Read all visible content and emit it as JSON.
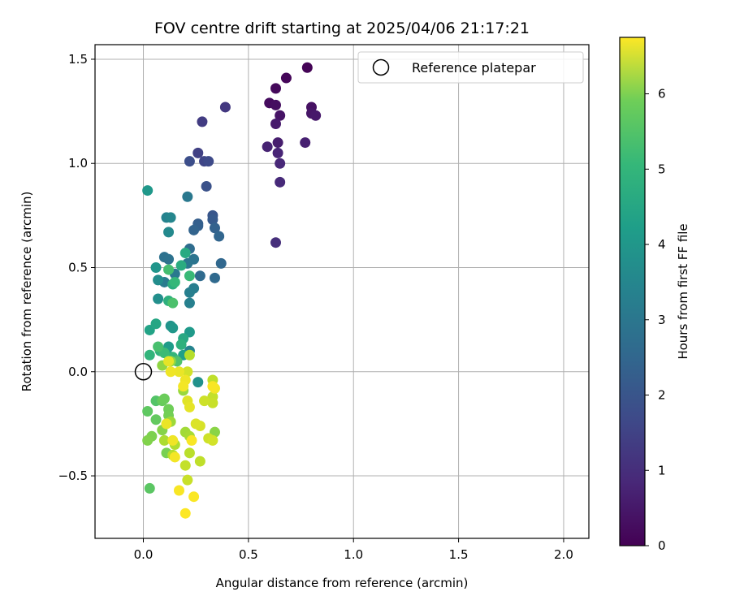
{
  "chart_data": {
    "type": "scatter",
    "title": "FOV centre drift starting at 2025/04/06 21:17:21",
    "xlabel": "Angular distance from reference (arcmin)",
    "ylabel": "Rotation from reference (arcmin)",
    "xlim": [
      -0.23,
      2.12
    ],
    "ylim": [
      -0.8,
      1.57
    ],
    "xticks": [
      0.0,
      0.5,
      1.0,
      1.5,
      2.0
    ],
    "xtick_labels": [
      "0.0",
      "0.5",
      "1.0",
      "1.5",
      "2.0"
    ],
    "yticks": [
      -0.5,
      0.0,
      0.5,
      1.0,
      1.5
    ],
    "ytick_labels": [
      "−0.5",
      "0.0",
      "0.5",
      "1.0",
      "1.5"
    ],
    "grid": true,
    "legend": {
      "placement": "top-right",
      "entries": [
        "Reference platepar"
      ]
    },
    "reference_point": {
      "x": 0.0,
      "y": 0.0,
      "label": "Reference platepar"
    },
    "colorbar": {
      "label": "Hours from first FF file",
      "colormap": "viridis",
      "range": [
        0,
        6.75
      ],
      "ticks": [
        0,
        1,
        2,
        3,
        4,
        5,
        6
      ],
      "tick_labels": [
        "0",
        "1",
        "2",
        "3",
        "4",
        "5",
        "6"
      ]
    },
    "points": [
      {
        "x": 0.78,
        "y": 1.46,
        "c": 0.05
      },
      {
        "x": 0.68,
        "y": 1.41,
        "c": 0.1
      },
      {
        "x": 0.63,
        "y": 1.36,
        "c": 0.15
      },
      {
        "x": 0.6,
        "y": 1.29,
        "c": 0.2
      },
      {
        "x": 0.63,
        "y": 1.28,
        "c": 0.25
      },
      {
        "x": 0.8,
        "y": 1.27,
        "c": 0.3
      },
      {
        "x": 0.65,
        "y": 1.23,
        "c": 0.35
      },
      {
        "x": 0.8,
        "y": 1.24,
        "c": 0.4
      },
      {
        "x": 0.82,
        "y": 1.23,
        "c": 0.45
      },
      {
        "x": 0.63,
        "y": 1.19,
        "c": 0.5
      },
      {
        "x": 0.64,
        "y": 1.1,
        "c": 0.55
      },
      {
        "x": 0.77,
        "y": 1.1,
        "c": 0.6
      },
      {
        "x": 0.59,
        "y": 1.08,
        "c": 0.65
      },
      {
        "x": 0.64,
        "y": 1.05,
        "c": 0.7
      },
      {
        "x": 0.65,
        "y": 1.0,
        "c": 0.75
      },
      {
        "x": 0.65,
        "y": 0.91,
        "c": 0.8
      },
      {
        "x": 0.63,
        "y": 0.62,
        "c": 0.9
      },
      {
        "x": 0.39,
        "y": 1.27,
        "c": 1.1
      },
      {
        "x": 0.28,
        "y": 1.2,
        "c": 1.2
      },
      {
        "x": 0.26,
        "y": 1.05,
        "c": 1.3
      },
      {
        "x": 0.29,
        "y": 1.01,
        "c": 1.4
      },
      {
        "x": 0.31,
        "y": 1.01,
        "c": 1.5
      },
      {
        "x": 0.22,
        "y": 1.01,
        "c": 1.6
      },
      {
        "x": 0.3,
        "y": 0.89,
        "c": 1.7
      },
      {
        "x": 0.33,
        "y": 0.75,
        "c": 1.8
      },
      {
        "x": 0.33,
        "y": 0.73,
        "c": 1.9
      },
      {
        "x": 0.26,
        "y": 0.71,
        "c": 2.0
      },
      {
        "x": 0.26,
        "y": 0.7,
        "c": 2.05
      },
      {
        "x": 0.34,
        "y": 0.69,
        "c": 2.1
      },
      {
        "x": 0.24,
        "y": 0.68,
        "c": 2.15
      },
      {
        "x": 0.36,
        "y": 0.65,
        "c": 2.2
      },
      {
        "x": 0.37,
        "y": 0.52,
        "c": 2.25
      },
      {
        "x": 0.34,
        "y": 0.45,
        "c": 2.3
      },
      {
        "x": 0.27,
        "y": 0.46,
        "c": 2.35
      },
      {
        "x": 0.21,
        "y": 0.84,
        "c": 2.7
      },
      {
        "x": 0.22,
        "y": 0.59,
        "c": 2.4
      },
      {
        "x": 0.1,
        "y": 0.55,
        "c": 2.5
      },
      {
        "x": 0.12,
        "y": 0.54,
        "c": 2.55
      },
      {
        "x": 0.24,
        "y": 0.54,
        "c": 2.6
      },
      {
        "x": 0.21,
        "y": 0.52,
        "c": 2.65
      },
      {
        "x": 0.15,
        "y": 0.47,
        "c": 2.75
      },
      {
        "x": 0.1,
        "y": 0.43,
        "c": 2.8
      },
      {
        "x": 0.24,
        "y": 0.4,
        "c": 2.85
      },
      {
        "x": 0.22,
        "y": 0.38,
        "c": 2.9
      },
      {
        "x": 0.22,
        "y": 0.33,
        "c": 2.95
      },
      {
        "x": 0.22,
        "y": 0.1,
        "c": 3.05
      },
      {
        "x": 0.11,
        "y": 0.74,
        "c": 3.0
      },
      {
        "x": 0.13,
        "y": 0.74,
        "c": 3.1
      },
      {
        "x": 0.12,
        "y": 0.67,
        "c": 3.2
      },
      {
        "x": 0.26,
        "y": -0.05,
        "c": 3.4
      },
      {
        "x": 0.02,
        "y": 0.87,
        "c": 3.6
      },
      {
        "x": 0.06,
        "y": 0.5,
        "c": 3.5
      },
      {
        "x": 0.07,
        "y": 0.44,
        "c": 3.3
      },
      {
        "x": 0.07,
        "y": 0.35,
        "c": 3.35
      },
      {
        "x": 0.13,
        "y": 0.22,
        "c": 3.45
      },
      {
        "x": 0.14,
        "y": 0.21,
        "c": 3.55
      },
      {
        "x": 0.22,
        "y": 0.19,
        "c": 3.65
      },
      {
        "x": 0.12,
        "y": 0.12,
        "c": 3.7
      },
      {
        "x": 0.11,
        "y": 0.1,
        "c": 3.75
      },
      {
        "x": 0.19,
        "y": 0.08,
        "c": 3.8
      },
      {
        "x": 0.03,
        "y": 0.2,
        "c": 3.9
      },
      {
        "x": 0.06,
        "y": 0.23,
        "c": 4.0
      },
      {
        "x": 0.19,
        "y": 0.16,
        "c": 4.05
      },
      {
        "x": 0.2,
        "y": 0.57,
        "c": 4.1
      },
      {
        "x": 0.18,
        "y": 0.51,
        "c": 4.15
      },
      {
        "x": 0.14,
        "y": 0.42,
        "c": 4.2
      },
      {
        "x": 0.12,
        "y": 0.34,
        "c": 4.25
      },
      {
        "x": 0.18,
        "y": 0.13,
        "c": 4.3
      },
      {
        "x": 0.08,
        "y": 0.1,
        "c": 4.35
      },
      {
        "x": 0.03,
        "y": 0.08,
        "c": 4.4
      },
      {
        "x": 0.14,
        "y": 0.07,
        "c": 4.45
      },
      {
        "x": 0.15,
        "y": 0.43,
        "c": 4.5
      },
      {
        "x": 0.22,
        "y": 0.46,
        "c": 4.55
      },
      {
        "x": 0.1,
        "y": 0.09,
        "c": 4.6
      },
      {
        "x": 0.12,
        "y": 0.49,
        "c": 4.7
      },
      {
        "x": 0.07,
        "y": 0.12,
        "c": 4.75
      },
      {
        "x": 0.14,
        "y": 0.33,
        "c": 4.8
      },
      {
        "x": 0.16,
        "y": 0.05,
        "c": 4.85
      },
      {
        "x": 0.06,
        "y": -0.14,
        "c": 4.9
      },
      {
        "x": 0.03,
        "y": -0.56,
        "c": 5.0
      },
      {
        "x": 0.02,
        "y": -0.19,
        "c": 5.05
      },
      {
        "x": 0.06,
        "y": -0.23,
        "c": 5.1
      },
      {
        "x": 0.09,
        "y": -0.14,
        "c": 5.15
      },
      {
        "x": 0.1,
        "y": -0.13,
        "c": 5.2
      },
      {
        "x": 0.12,
        "y": -0.18,
        "c": 5.25
      },
      {
        "x": 0.12,
        "y": -0.21,
        "c": 5.3
      },
      {
        "x": 0.11,
        "y": -0.39,
        "c": 5.35
      },
      {
        "x": 0.04,
        "y": -0.31,
        "c": 5.4
      },
      {
        "x": 0.02,
        "y": -0.33,
        "c": 5.45
      },
      {
        "x": 0.09,
        "y": -0.28,
        "c": 5.5
      },
      {
        "x": 0.34,
        "y": -0.29,
        "c": 5.55
      },
      {
        "x": 0.09,
        "y": 0.03,
        "c": 5.6
      },
      {
        "x": 0.13,
        "y": 0.05,
        "c": 5.65
      },
      {
        "x": 0.19,
        "y": -0.09,
        "c": 5.7
      },
      {
        "x": 0.13,
        "y": -0.24,
        "c": 5.75
      },
      {
        "x": 0.2,
        "y": -0.29,
        "c": 5.8
      },
      {
        "x": 0.22,
        "y": -0.31,
        "c": 5.85
      },
      {
        "x": 0.1,
        "y": -0.33,
        "c": 5.9
      },
      {
        "x": 0.15,
        "y": -0.35,
        "c": 5.95
      },
      {
        "x": 0.14,
        "y": -0.4,
        "c": 6.0
      },
      {
        "x": 0.22,
        "y": -0.39,
        "c": 6.05
      },
      {
        "x": 0.27,
        "y": -0.43,
        "c": 6.1
      },
      {
        "x": 0.2,
        "y": -0.45,
        "c": 6.15
      },
      {
        "x": 0.21,
        "y": -0.52,
        "c": 6.2
      },
      {
        "x": 0.33,
        "y": -0.04,
        "c": 6.1
      },
      {
        "x": 0.33,
        "y": -0.12,
        "c": 6.15
      },
      {
        "x": 0.33,
        "y": -0.15,
        "c": 6.2
      },
      {
        "x": 0.29,
        "y": -0.14,
        "c": 6.25
      },
      {
        "x": 0.31,
        "y": -0.32,
        "c": 6.25
      },
      {
        "x": 0.33,
        "y": -0.33,
        "c": 6.3
      },
      {
        "x": 0.21,
        "y": 0.0,
        "c": 6.3
      },
      {
        "x": 0.22,
        "y": 0.08,
        "c": 6.0
      },
      {
        "x": 0.27,
        "y": -0.26,
        "c": 6.35
      },
      {
        "x": 0.25,
        "y": -0.25,
        "c": 6.4
      },
      {
        "x": 0.21,
        "y": -0.14,
        "c": 6.45
      },
      {
        "x": 0.22,
        "y": -0.17,
        "c": 6.5
      },
      {
        "x": 0.12,
        "y": 0.05,
        "c": 6.5
      },
      {
        "x": 0.17,
        "y": 0.0,
        "c": 6.55
      },
      {
        "x": 0.13,
        "y": 0.0,
        "c": 6.6
      },
      {
        "x": 0.2,
        "y": -0.04,
        "c": 6.6
      },
      {
        "x": 0.19,
        "y": -0.07,
        "c": 6.65
      },
      {
        "x": 0.34,
        "y": -0.08,
        "c": 6.65
      },
      {
        "x": 0.33,
        "y": -0.07,
        "c": 6.7
      },
      {
        "x": 0.11,
        "y": -0.25,
        "c": 6.55
      },
      {
        "x": 0.14,
        "y": -0.33,
        "c": 6.6
      },
      {
        "x": 0.15,
        "y": -0.41,
        "c": 6.65
      },
      {
        "x": 0.23,
        "y": -0.33,
        "c": 6.7
      },
      {
        "x": 0.17,
        "y": -0.57,
        "c": 6.7
      },
      {
        "x": 0.24,
        "y": -0.6,
        "c": 6.72
      },
      {
        "x": 0.2,
        "y": -0.68,
        "c": 6.74
      }
    ]
  }
}
